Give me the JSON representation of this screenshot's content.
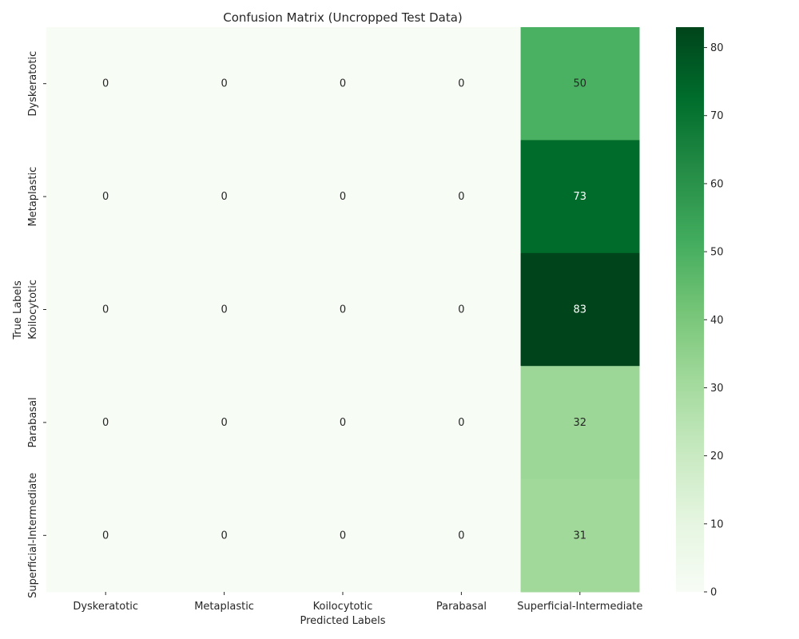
{
  "chart_data": {
    "type": "heatmap",
    "title": "Confusion Matrix (Uncropped Test Data)",
    "xlabel": "Predicted Labels",
    "ylabel": "True Labels",
    "x_categories": [
      "Dyskeratotic",
      "Metaplastic",
      "Koilocytotic",
      "Parabasal",
      "Superficial-Intermediate"
    ],
    "y_categories": [
      "Dyskeratotic",
      "Metaplastic",
      "Koilocytotic",
      "Parabasal",
      "Superficial-Intermediate"
    ],
    "values": [
      [
        0,
        0,
        0,
        0,
        50
      ],
      [
        0,
        0,
        0,
        0,
        73
      ],
      [
        0,
        0,
        0,
        0,
        83
      ],
      [
        0,
        0,
        0,
        0,
        32
      ],
      [
        0,
        0,
        0,
        0,
        31
      ]
    ],
    "colormap": "Greens",
    "vmin": 0,
    "vmax": 83,
    "colorbar_ticks": [
      0,
      10,
      20,
      30,
      40,
      50,
      60,
      70,
      80
    ]
  }
}
